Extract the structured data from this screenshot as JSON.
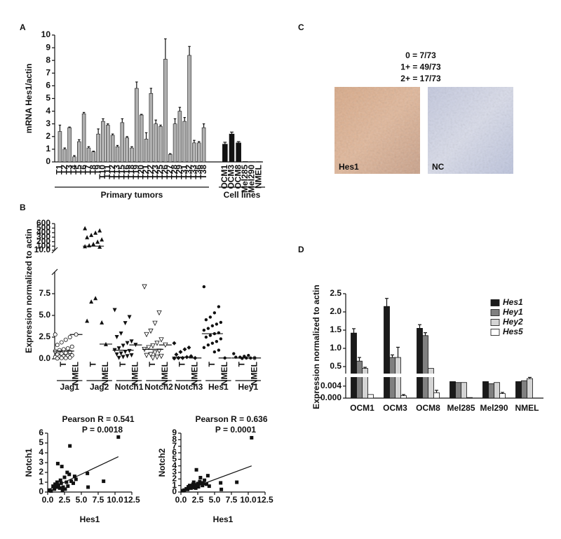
{
  "chart_data": [
    {
      "type": "bar",
      "panel": "A",
      "ylabel": "mRNA Hes1/actin",
      "ylim": [
        0,
        10
      ],
      "yticks": [
        0,
        1,
        2,
        3,
        4,
        5,
        6,
        7,
        8,
        9,
        10
      ],
      "groups": [
        {
          "label": "Primary tumors",
          "color": "#b0b0b0",
          "categories": [
            "T1",
            "T2",
            "T3",
            "T4",
            "T5",
            "T6",
            "T7",
            "T8",
            "T9",
            "T10",
            "T11",
            "T12",
            "T13",
            "T15",
            "T16",
            "T18",
            "T19",
            "T20",
            "T21",
            "T22",
            "T23",
            "T25",
            "T26",
            "T27",
            "T28",
            "T29",
            "T31",
            "T32",
            "T33",
            "T36",
            "T38"
          ],
          "values": [
            2.4,
            1.0,
            2.7,
            0.4,
            1.6,
            3.8,
            1.1,
            0.8,
            2.2,
            3.2,
            2.9,
            2.1,
            1.2,
            3.1,
            1.9,
            1.1,
            5.8,
            3.7,
            1.8,
            5.4,
            3.0,
            2.8,
            8.1,
            0.6,
            3.0,
            4.0,
            3.2,
            8.4,
            1.5,
            1.5,
            2.7
          ],
          "errors": [
            0.5,
            0.1,
            0.05,
            0.1,
            0.15,
            0.1,
            0.1,
            0.05,
            0.4,
            0.2,
            0.1,
            0.1,
            0.1,
            0.3,
            0.1,
            0.1,
            0.5,
            0.05,
            0.5,
            0.4,
            0.3,
            0.1,
            1.6,
            0.05,
            0.4,
            0.3,
            0.3,
            0.7,
            0.2,
            0.1,
            0.3
          ]
        },
        {
          "label": "Cell lines",
          "color": "#111111",
          "categories": [
            "OCM1",
            "OCM3",
            "OCM8",
            "Mel285",
            "Mel290",
            "NMEL"
          ],
          "values": [
            1.4,
            2.2,
            1.5,
            0.03,
            0.02,
            0.02
          ],
          "errors": [
            0.15,
            0.15,
            0.1,
            null,
            null,
            null
          ]
        }
      ]
    },
    {
      "type": "strip",
      "panel": "B",
      "ylabel": "Expression normalized to actin",
      "ylim": [
        0,
        10
      ],
      "yticks": [
        {
          "value": 0,
          "label": "0.0"
        },
        2.5,
        {
          "value": 5,
          "label": "5.0"
        },
        7.5
      ],
      "ylim_upper": [
        10,
        600
      ],
      "yticks_upper": [
        {
          "value": 10,
          "label": "10.0"
        },
        100,
        200,
        300,
        400,
        500,
        600
      ],
      "categories": [
        "Jag1",
        "Jag2",
        "Notch1",
        "Notch2",
        "Notch3",
        "Hes1",
        "Hey1"
      ],
      "series": [
        {
          "name": "T",
          "markers": [
            "circle-open",
            "triangle",
            "triangle-down",
            "triangle-down-open",
            "diamond",
            "dot",
            "dot"
          ],
          "values": [
            [
              2.8,
              2.5,
              2.2,
              1.9,
              1.6,
              1.4,
              1.2,
              1.1,
              1.0,
              0.9,
              0.8,
              0.7,
              0.6,
              0.5,
              0.4,
              0.35,
              0.3,
              0.25,
              0.2,
              0.15,
              0.1,
              0.1,
              0.05
            ],
            [
              500,
              450,
              400,
              350,
              300,
              250,
              200,
              150,
              120,
              100,
              90,
              7.0,
              6.6,
              4.4,
              4.2
            ],
            [
              5.6,
              4.8,
              4.1,
              2.9,
              2.5,
              2.0,
              1.8,
              1.5,
              1.2,
              1.0,
              0.9,
              0.8,
              0.6,
              0.5,
              0.4,
              0.3,
              0.2,
              0.1
            ],
            [
              8.3,
              5.3,
              4.1,
              3.2,
              2.8,
              2.2,
              1.8,
              1.5,
              1.3,
              1.1,
              0.9,
              0.7,
              0.5,
              0.4,
              0.3,
              0.2,
              0.1
            ],
            [
              1.8,
              1.3,
              1.1,
              0.8,
              0.5,
              0.3,
              0.2,
              0.1,
              0.1,
              0.05
            ],
            [
              8.3,
              6.0,
              5.3,
              4.8,
              4.5,
              4.2,
              4.0,
              3.8,
              3.5,
              3.3,
              3.0,
              2.9,
              2.7,
              2.5,
              2.3,
              2.0,
              1.8,
              1.6,
              1.3,
              1.0,
              0.8
            ],
            [
              0.6,
              0.4,
              0.3,
              0.2,
              0.2,
              0.1,
              0.1,
              0.05
            ]
          ],
          "medians": [
            0.9,
            100,
            1.0,
            1.1,
            0.2,
            2.9,
            0.1
          ]
        },
        {
          "name": "NMEL",
          "markers": [
            "circle-open",
            "triangle",
            "triangle-down",
            "triangle-down-open",
            "diamond",
            "dot",
            "star"
          ],
          "values": [
            2.8,
            1.7,
            1.6,
            1.6,
            0.1,
            0.1,
            0.1
          ]
        }
      ]
    },
    {
      "type": "scatter",
      "title": "Pearson R = 0.541",
      "subtitle": "P = 0.0018",
      "xlabel": "Hes1",
      "ylabel": "Notch1",
      "xlim": [
        0,
        12.5
      ],
      "xticks": [
        {
          "value": 0,
          "label": "0.0"
        },
        2.5,
        {
          "value": 5,
          "label": "5.0"
        },
        7.5,
        {
          "value": 10,
          "label": "10.0"
        },
        12.5
      ],
      "ylim": [
        0,
        6
      ],
      "yticks": [
        0,
        1,
        2,
        3,
        4,
        5,
        6
      ],
      "x": [
        0.3,
        0.5,
        0.8,
        1.0,
        1.1,
        1.3,
        1.5,
        1.6,
        1.8,
        1.9,
        2.0,
        2.1,
        2.3,
        2.5,
        2.6,
        2.8,
        2.9,
        3.0,
        3.2,
        3.3,
        3.5,
        3.8,
        4.0,
        4.2,
        5.9,
        6.0,
        8.3,
        10.5,
        2.2,
        1.4
      ],
      "y": [
        0.2,
        0.1,
        0.6,
        0.3,
        0.8,
        0.5,
        2.9,
        0.7,
        0.4,
        1.2,
        0.9,
        2.6,
        0.5,
        1.5,
        0.3,
        1.0,
        2.0,
        0.6,
        1.8,
        4.7,
        1.1,
        0.9,
        1.6,
        1.3,
        1.9,
        0.5,
        1.1,
        5.6,
        0.2,
        1.0
      ],
      "fit": {
        "x": [
          0,
          10.5
        ],
        "y": [
          0.2,
          3.6
        ]
      }
    },
    {
      "type": "scatter",
      "title": "Pearson R = 0.636",
      "subtitle": "P = 0.0001",
      "xlabel": "Hes1",
      "ylabel": "Notch2",
      "xlim": [
        0,
        12.5
      ],
      "xticks": [
        {
          "value": 0,
          "label": "0.0"
        },
        2.5,
        {
          "value": 5,
          "label": "5.0"
        },
        7.5,
        {
          "value": 10,
          "label": "10.0"
        },
        12.5
      ],
      "ylim": [
        0,
        9
      ],
      "yticks": [
        0,
        1,
        2,
        3,
        4,
        5,
        6,
        7,
        8,
        9
      ],
      "x": [
        0.3,
        0.5,
        0.8,
        1.0,
        1.1,
        1.3,
        1.5,
        1.6,
        1.8,
        1.9,
        2.0,
        2.1,
        2.3,
        2.5,
        2.6,
        2.8,
        2.9,
        3.0,
        3.2,
        3.3,
        3.5,
        3.8,
        4.0,
        4.2,
        5.9,
        6.0,
        8.3,
        10.5,
        2.2,
        1.4
      ],
      "y": [
        0.2,
        0.3,
        0.5,
        0.4,
        0.8,
        1.0,
        0.6,
        0.9,
        1.2,
        1.5,
        0.7,
        1.1,
        3.4,
        1.3,
        0.8,
        1.6,
        2.2,
        1.4,
        1.0,
        1.3,
        1.8,
        1.2,
        2.5,
        0.9,
        1.4,
        0.4,
        1.5,
        8.3,
        0.6,
        0.7
      ],
      "fit": {
        "x": [
          0,
          10.5
        ],
        "y": [
          0.0,
          4.0
        ]
      }
    },
    {
      "type": "image",
      "panel": "C",
      "lines": [
        "0 = 7/73",
        "1+ = 49/73",
        "2+ = 17/73"
      ],
      "images": [
        {
          "label": "Hes1"
        },
        {
          "label": "NC"
        }
      ]
    },
    {
      "type": "grouped-bar",
      "panel": "D",
      "ylabel": "Expression normalized to actin",
      "categories": [
        "OCM1",
        "OCM3",
        "OCM8",
        "Mel285",
        "Mel290",
        "NMEL"
      ],
      "ylim": [
        0,
        2.5
      ],
      "yticks": [
        0.5,
        {
          "value": 1,
          "label": "1.0"
        },
        1.5,
        {
          "value": 2,
          "label": "2.0"
        },
        2.5
      ],
      "ylim_lower": [
        0,
        0.007
      ],
      "yticks_lower": [
        {
          "value": 0,
          "label": "0.000"
        },
        0.004
      ],
      "series": [
        {
          "name": "Hes1",
          "color": "#1a1a1a",
          "values": [
            1.42,
            2.15,
            1.55,
            0.0055,
            0.0055,
            0.0055
          ],
          "errors": [
            0.12,
            0.22,
            0.1,
            null,
            null,
            null
          ]
        },
        {
          "name": "Hey1",
          "color": "#808080",
          "values": [
            0.65,
            0.75,
            1.35,
            0.0052,
            0.0048,
            0.0058
          ],
          "errors": [
            0.1,
            0.07,
            0.08,
            null,
            null,
            null
          ]
        },
        {
          "name": "Hey2",
          "color": "#d4d4d4",
          "values": [
            0.45,
            0.75,
            0.45,
            0.0052,
            0.0052,
            0.0065
          ],
          "errors": [
            0.03,
            0.28,
            null,
            null,
            null,
            0.0004
          ]
        },
        {
          "name": "Hes5",
          "color": "#ffffff",
          "values": [
            0.0012,
            0.0008,
            0.0018,
            0.0002,
            0.0015,
            null
          ],
          "errors": [
            null,
            0.0004,
            0.0008,
            null,
            0.0004,
            null
          ]
        }
      ]
    }
  ]
}
